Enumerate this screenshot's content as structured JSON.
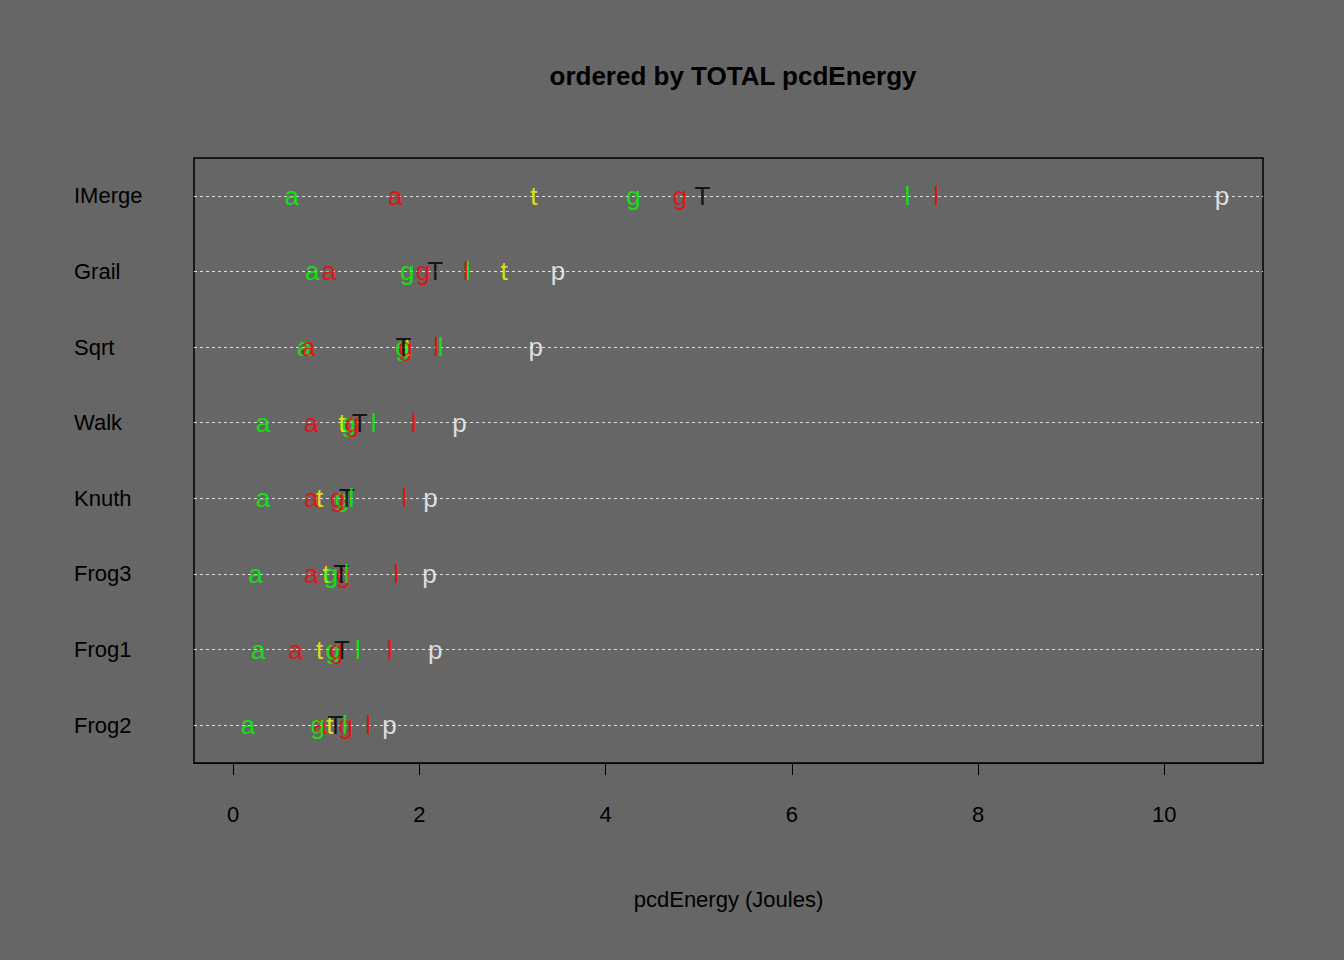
{
  "chart_data": {
    "type": "scatter",
    "title": "ordered by TOTAL pcdEnergy",
    "x_label": "pcdEnergy (Joules)",
    "orientation": "horizontal",
    "categories": [
      "IMerge",
      "Grail",
      "Sqrt",
      "Walk",
      "Knuth",
      "Frog3",
      "Frog1",
      "Frog2"
    ],
    "xlim": [
      -0.42,
      11.06
    ],
    "xticks": [
      0,
      2,
      4,
      6,
      8,
      10
    ],
    "grid": true,
    "series": [
      {
        "marker": "a",
        "color": "#00ff00",
        "values": [
          0.63,
          0.85,
          0.76,
          0.32,
          0.32,
          0.24,
          0.27,
          0.16
        ]
      },
      {
        "marker": "a",
        "color": "#ff0000",
        "values": [
          1.74,
          1.03,
          0.81,
          0.84,
          0.84,
          0.84,
          0.67,
          0.93
        ]
      },
      {
        "marker": "t",
        "color": "#ffff00",
        "values": [
          3.23,
          2.91,
          1.87,
          1.17,
          0.93,
          1.0,
          0.93,
          1.04
        ]
      },
      {
        "marker": "g",
        "color": "#00ff00",
        "values": [
          4.3,
          1.87,
          1.82,
          1.24,
          1.17,
          1.05,
          1.07,
          0.91
        ]
      },
      {
        "marker": "g",
        "color": "#ff0000",
        "values": [
          4.8,
          2.04,
          1.85,
          1.28,
          1.12,
          1.18,
          1.11,
          1.21
        ]
      },
      {
        "marker": "T",
        "color": "#000000",
        "values": [
          5.04,
          2.17,
          1.83,
          1.36,
          1.22,
          1.16,
          1.17,
          1.1
        ]
      },
      {
        "marker": "l",
        "color": "#00ff00",
        "values": [
          7.24,
          2.52,
          2.23,
          1.51,
          1.27,
          1.22,
          1.34,
          1.2
        ]
      },
      {
        "marker": "l",
        "color": "#ff0000",
        "values": [
          7.55,
          2.5,
          2.18,
          1.94,
          1.84,
          1.75,
          1.68,
          1.45
        ]
      },
      {
        "marker": "p",
        "color": "#ffffff",
        "values": [
          10.62,
          3.49,
          3.25,
          2.43,
          2.12,
          2.11,
          2.17,
          1.68
        ]
      }
    ]
  }
}
